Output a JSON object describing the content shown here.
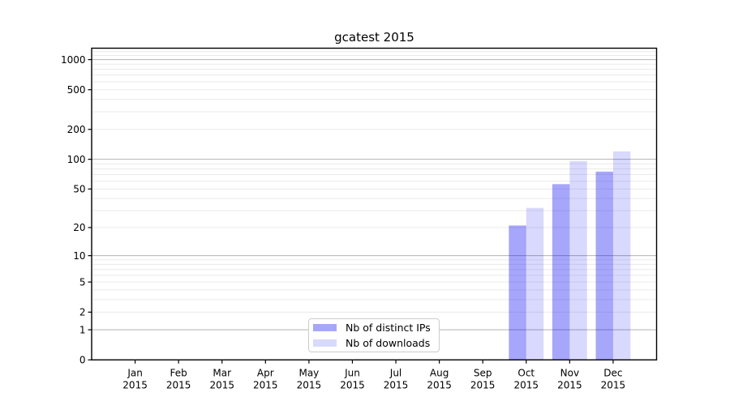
{
  "chart_data": {
    "type": "bar",
    "title": "gcatest 2015",
    "categories": [
      "Jan",
      "Feb",
      "Mar",
      "Apr",
      "May",
      "Jun",
      "Jul",
      "Aug",
      "Sep",
      "Oct",
      "Nov",
      "Dec"
    ],
    "category_year": "2015",
    "series": [
      {
        "name": "Nb of distinct IPs",
        "bar_color": "#0000f0",
        "bar_opacity": 0.35,
        "legend_color": "#a7a7f8",
        "values": [
          0,
          0,
          0,
          0,
          0,
          0,
          0,
          0,
          0,
          21,
          56,
          75
        ]
      },
      {
        "name": "Nb of downloads",
        "bar_color": "#0000f0",
        "bar_opacity": 0.15,
        "legend_color": "#d9d9fb",
        "values": [
          0,
          0,
          0,
          0,
          0,
          0,
          0,
          0,
          0,
          32,
          96,
          120
        ]
      }
    ],
    "y_scale": "log10(value+1)",
    "ylim": [
      0,
      1300
    ],
    "y_ticks": [
      0,
      1,
      2,
      5,
      10,
      20,
      50,
      100,
      200,
      500,
      1000
    ],
    "y_minor_ticks": [
      2,
      3,
      4,
      5,
      6,
      7,
      8,
      9,
      20,
      30,
      40,
      50,
      60,
      70,
      80,
      90,
      200,
      300,
      400,
      500,
      600,
      700,
      800,
      900,
      1100,
      1200
    ],
    "grid": true,
    "legend_position": "lower center",
    "colors": {
      "grid_major": "#b3b3b3",
      "grid_minor": "#eaeaea",
      "spine": "#000000",
      "text": "#000000",
      "background": "#ffffff",
      "legend_border": "#cccccc"
    }
  }
}
